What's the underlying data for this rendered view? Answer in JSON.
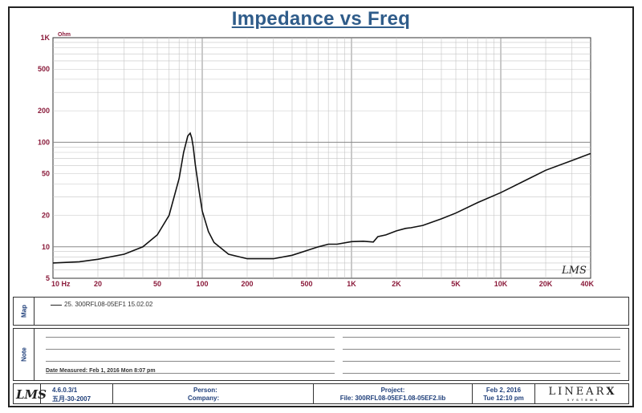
{
  "chart_data": {
    "type": "line",
    "title": "Impedance vs Freq",
    "y_unit": "Ohm",
    "x_scale": "log",
    "y_scale": "log",
    "xlim": [
      10,
      40000
    ],
    "ylim": [
      5,
      1000
    ],
    "x_ticks": [
      {
        "value": 10,
        "label": "10  Hz"
      },
      {
        "value": 20,
        "label": "20"
      },
      {
        "value": 50,
        "label": "50"
      },
      {
        "value": 100,
        "label": "100"
      },
      {
        "value": 200,
        "label": "200"
      },
      {
        "value": 500,
        "label": "500"
      },
      {
        "value": 1000,
        "label": "1K"
      },
      {
        "value": 2000,
        "label": "2K"
      },
      {
        "value": 5000,
        "label": "5K"
      },
      {
        "value": 10000,
        "label": "10K"
      },
      {
        "value": 20000,
        "label": "20K"
      },
      {
        "value": 40000,
        "label": "40K"
      }
    ],
    "y_ticks": [
      {
        "value": 1000,
        "label": "1K"
      },
      {
        "value": 500,
        "label": "500"
      },
      {
        "value": 200,
        "label": "200"
      },
      {
        "value": 100,
        "label": "100"
      },
      {
        "value": 50,
        "label": "50"
      },
      {
        "value": 20,
        "label": "20"
      },
      {
        "value": 10,
        "label": "10"
      },
      {
        "value": 5,
        "label": "5"
      }
    ],
    "grid": true,
    "watermark": "LMS",
    "series": [
      {
        "name": "25. 300RFL08-05EF1 15.02.02",
        "color": "#111111",
        "x": [
          10,
          15,
          20,
          30,
          40,
          50,
          60,
          70,
          75,
          80,
          83,
          85,
          87,
          90,
          95,
          100,
          110,
          120,
          150,
          200,
          300,
          400,
          500,
          600,
          700,
          800,
          1000,
          1200,
          1400,
          1500,
          1700,
          2000,
          2300,
          2500,
          3000,
          4000,
          5000,
          7000,
          10000,
          15000,
          20000,
          30000,
          40000
        ],
        "y": [
          7.0,
          7.2,
          7.6,
          8.5,
          10.0,
          13.0,
          20.0,
          45.0,
          80.0,
          115.0,
          122.0,
          110.0,
          90.0,
          60.0,
          35.0,
          22.0,
          14.0,
          11.0,
          8.5,
          7.7,
          7.7,
          8.3,
          9.2,
          10.0,
          10.6,
          10.6,
          11.2,
          11.3,
          11.1,
          12.5,
          13.0,
          14.2,
          15.0,
          15.2,
          16.0,
          18.5,
          21.0,
          26.5,
          33.0,
          44.0,
          54.0,
          67.0,
          78.0
        ]
      }
    ]
  },
  "legend": {
    "panel_label": "Map",
    "entry": "25. 300RFL08-05EF1 15.02.02"
  },
  "notes": {
    "panel_label": "Note",
    "date_measured": "Date Measured: Feb  1, 2016  Mon  8:07 pm"
  },
  "footer": {
    "logo": "LMS",
    "version": "4.6.0.3/1",
    "version_date": "五月-30-2007",
    "person_label": "Person:",
    "company_label": "Company:",
    "project_label": "Project:",
    "file_label": "File: 300RFL08-05EF1.08-05EF2.lib",
    "print_date": "Feb  2, 2016",
    "print_time": "Tue  12:10 pm",
    "brand": "LINEAR",
    "brand_x": "X",
    "brand_sub": "S Y S T E M S"
  }
}
